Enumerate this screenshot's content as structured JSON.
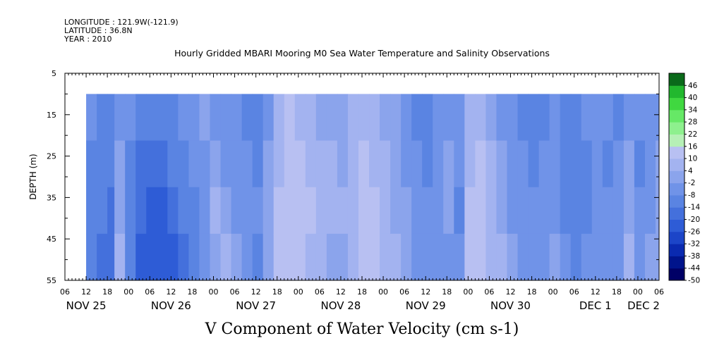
{
  "header": {
    "longitude": "LONGITUDE : 121.9W(-121.9)",
    "latitude": "LATITUDE : 36.8N",
    "year": "YEAR : 2010"
  },
  "chart_data": {
    "type": "heatmap",
    "title": "Hourly Gridded MBARI Mooring M0 Sea Water Temperature and Salinity Observations",
    "xlabel": "V Component of Water Velocity (cm s-1)",
    "ylabel": "DEPTH (m)",
    "x_range_hours": [
      0,
      168
    ],
    "data_start_hour": 6,
    "y_range": [
      5,
      55
    ],
    "data_depth_range": [
      10,
      55
    ],
    "y_inverted": true,
    "y_ticks": [
      "5",
      "15",
      "25",
      "35",
      "45",
      "55"
    ],
    "x_hour_ticks": [
      "06",
      "12",
      "18",
      "00",
      "06",
      "12",
      "18",
      "00",
      "06",
      "12",
      "18",
      "00",
      "06",
      "12",
      "18",
      "00",
      "06",
      "12",
      "18",
      "00",
      "06",
      "12",
      "18",
      "00",
      "06",
      "12",
      "18",
      "00",
      "06"
    ],
    "date_labels": [
      "NOV 25",
      "NOV 26",
      "NOV 27",
      "NOV 28",
      "NOV 29",
      "NOV 30",
      "DEC 1",
      "DEC 2"
    ],
    "colorbar_levels": [
      46,
      40,
      34,
      28,
      22,
      16,
      10,
      4,
      -2,
      -8,
      -14,
      -20,
      -26,
      -32,
      -38,
      -44,
      -50
    ],
    "colorbar_range": [
      -50,
      52
    ],
    "column_hours": [
      6,
      9,
      12,
      14,
      17,
      20,
      23,
      26,
      29,
      32,
      35,
      38,
      41,
      44,
      47,
      50,
      53,
      56,
      59,
      62,
      65,
      68,
      71,
      74,
      77,
      80,
      83,
      86,
      89,
      92,
      95,
      98,
      101,
      104,
      107,
      110,
      113,
      116,
      119,
      122,
      125,
      128,
      131,
      134,
      137,
      140,
      143,
      146,
      149,
      152,
      155,
      158,
      161,
      164,
      167
    ],
    "v_profiles": [
      [
        -8,
        -10,
        -12,
        -14
      ],
      [
        -10,
        -12,
        -14,
        -18
      ],
      [
        -12,
        -14,
        -16,
        -20
      ],
      [
        -4,
        -2,
        0,
        4
      ],
      [
        -8,
        -12,
        -14,
        -10
      ],
      [
        -14,
        -18,
        -20,
        -22
      ],
      [
        -14,
        -18,
        -22,
        -24
      ],
      [
        -12,
        -16,
        -22,
        -26
      ],
      [
        -10,
        -14,
        -20,
        -24
      ],
      [
        -8,
        -10,
        -14,
        -16
      ],
      [
        -6,
        -8,
        -10,
        -12
      ],
      [
        -2,
        -4,
        -4,
        -6
      ],
      [
        -4,
        2,
        4,
        2
      ],
      [
        -6,
        -4,
        2,
        4
      ],
      [
        -8,
        -6,
        -4,
        0
      ],
      [
        -10,
        -8,
        -6,
        -8
      ],
      [
        -10,
        -10,
        -8,
        -10
      ],
      [
        -4,
        -2,
        0,
        2
      ],
      [
        6,
        8,
        10,
        12
      ],
      [
        10,
        12,
        14,
        14
      ],
      [
        6,
        12,
        14,
        10
      ],
      [
        4,
        8,
        10,
        6
      ],
      [
        2,
        6,
        8,
        4
      ],
      [
        0,
        4,
        6,
        2
      ],
      [
        -2,
        2,
        4,
        2
      ],
      [
        4,
        6,
        6,
        4
      ],
      [
        8,
        10,
        12,
        10
      ],
      [
        6,
        8,
        10,
        12
      ],
      [
        2,
        4,
        6,
        8
      ],
      [
        -2,
        0,
        2,
        4
      ],
      [
        -6,
        -4,
        -2,
        0
      ],
      [
        -10,
        -8,
        -6,
        -4
      ],
      [
        -12,
        -10,
        -8,
        -6
      ],
      [
        -8,
        -6,
        -6,
        -4
      ],
      [
        -4,
        -2,
        -2,
        -4
      ],
      [
        -6,
        -8,
        -10,
        -8
      ],
      [
        4,
        8,
        10,
        12
      ],
      [
        8,
        12,
        12,
        10
      ],
      [
        2,
        4,
        6,
        4
      ],
      [
        -4,
        -2,
        2,
        4
      ],
      [
        -8,
        -6,
        -4,
        -2
      ],
      [
        -10,
        -8,
        -8,
        -6
      ],
      [
        -12,
        -10,
        -8,
        -8
      ],
      [
        -10,
        -8,
        -6,
        -4
      ],
      [
        -8,
        -6,
        -4,
        -2
      ],
      [
        -10,
        -12,
        -10,
        -8
      ],
      [
        -12,
        -14,
        -12,
        -10
      ],
      [
        -8,
        -10,
        -10,
        -8
      ],
      [
        -6,
        -8,
        -6,
        -4
      ],
      [
        -8,
        -10,
        -8,
        -6
      ],
      [
        -10,
        -8,
        -6,
        -4
      ],
      [
        -4,
        -2,
        0,
        4
      ],
      [
        -8,
        -10,
        -8,
        -6
      ],
      [
        -6,
        -8,
        -6,
        -2
      ],
      [
        -4,
        -2,
        0,
        2
      ]
    ]
  }
}
